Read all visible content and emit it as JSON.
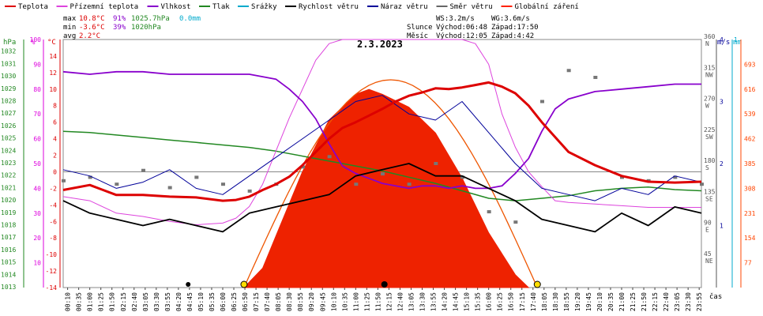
{
  "legend": [
    {
      "label": "Teplota",
      "color": "#dd0000"
    },
    {
      "label": "Přízemní teplota",
      "color": "#dd44dd"
    },
    {
      "label": "Vlhkost",
      "color": "#8800cc"
    },
    {
      "label": "Tlak",
      "color": "#228822"
    },
    {
      "label": "Srážky",
      "color": "#00aacc"
    },
    {
      "label": "Rychlost větru",
      "color": "#000000"
    },
    {
      "label": "Náraz větru",
      "color": "#000099"
    },
    {
      "label": "Směr větru",
      "color": "#666666"
    },
    {
      "label": "Globální záření",
      "color": "#ff2200"
    }
  ],
  "stats": {
    "max": {
      "label": "max",
      "temp": "10.8°C",
      "hum": "91%",
      "press": "1025.7hPa",
      "rain": "0.0mm"
    },
    "min": {
      "label": "min",
      "temp": "-3.6°C",
      "hum": "39%",
      "press": "1020hPa"
    },
    "avg": {
      "label": "avg",
      "temp": "2.2°C"
    }
  },
  "sun": {
    "ws": "WS:3.2m/s",
    "wg": "WG:3.6m/s",
    "sun_label": "Slunce",
    "sunrise": "Východ:06:48",
    "sunset": "Západ:17:50",
    "moon_label": "Měsíc",
    "moonrise": "Východ:12:05",
    "moonset": "Západ:4:42"
  },
  "chart_data": {
    "type": "line",
    "title": "2.3.2023",
    "x_label": "čas",
    "x_range_hours": [
      0,
      24
    ],
    "x_ticks": [
      "00:10",
      "00:35",
      "01:00",
      "01:25",
      "01:50",
      "02:15",
      "02:40",
      "03:05",
      "03:30",
      "03:55",
      "04:20",
      "04:45",
      "05:10",
      "05:35",
      "06:00",
      "06:25",
      "06:50",
      "07:15",
      "07:40",
      "08:05",
      "08:30",
      "08:55",
      "09:20",
      "09:45",
      "10:10",
      "10:35",
      "11:00",
      "11:25",
      "11:50",
      "12:15",
      "12:40",
      "13:05",
      "13:30",
      "13:55",
      "14:20",
      "14:45",
      "15:10",
      "15:35",
      "16:00",
      "16:25",
      "16:50",
      "17:15",
      "17:40",
      "18:05",
      "18:30",
      "18:55",
      "19:20",
      "19:45",
      "20:10",
      "20:35",
      "21:00",
      "21:25",
      "21:50",
      "22:15",
      "22:40",
      "23:05",
      "23:30",
      "23:55"
    ],
    "axes": {
      "pressure": {
        "unit": "hPa",
        "range": [
          1013,
          1033
        ],
        "ticks": [
          1013,
          1014,
          1015,
          1016,
          1017,
          1018,
          1019,
          1020,
          1021,
          1022,
          1023,
          1024,
          1025,
          1026,
          1027,
          1028,
          1029,
          1030,
          1031,
          1032
        ]
      },
      "humidity": {
        "unit": "%",
        "range": [
          0,
          100
        ],
        "ticks": [
          10,
          20,
          30,
          40,
          50,
          60,
          70,
          80,
          90,
          100
        ]
      },
      "temperature": {
        "unit": "°C",
        "range": [
          -14,
          16
        ],
        "ticks": [
          -14,
          -12,
          -10,
          -8,
          -6,
          -4,
          -2,
          0,
          2,
          4,
          6,
          8,
          10,
          12,
          14
        ]
      },
      "wind_direction": {
        "unit": "°",
        "range": [
          0,
          360
        ],
        "ticks": [
          "45 NE",
          "90 E",
          "135 SE",
          "180 S",
          "225 SW",
          "270 W",
          "315 NW",
          "360 N"
        ]
      },
      "wind_speed": {
        "unit": "m/s",
        "range": [
          0,
          4
        ],
        "ticks": [
          1,
          2,
          3,
          4
        ]
      },
      "rain": {
        "unit": "mm",
        "range": [
          0,
          1
        ],
        "ticks": [
          1
        ]
      },
      "radiation": {
        "unit": "W/m²",
        "range": [
          0,
          770
        ],
        "ticks": [
          77,
          154,
          231,
          308,
          385,
          462,
          539,
          616,
          693
        ]
      }
    },
    "series": [
      {
        "name": "Teplota",
        "axis": "temperature",
        "x": [
          0,
          1,
          2,
          3,
          4,
          5,
          6,
          6.5,
          7,
          7.5,
          8,
          8.5,
          9,
          9.5,
          10,
          10.5,
          11,
          11.5,
          12,
          12.5,
          13,
          13.5,
          14,
          14.5,
          15,
          15.5,
          16,
          16.5,
          17,
          17.5,
          18,
          18.5,
          19,
          20,
          21,
          22,
          23,
          24
        ],
        "y": [
          -2.2,
          -1.6,
          -2.8,
          -2.8,
          -3,
          -3.1,
          -3.5,
          -3.4,
          -3,
          -2.2,
          -1.5,
          -0.6,
          0.8,
          2.4,
          4,
          5.3,
          6,
          6.8,
          7.6,
          8.5,
          9.2,
          9.6,
          10.1,
          10,
          10.2,
          10.5,
          10.8,
          10.3,
          9.5,
          8,
          6,
          4.2,
          2.4,
          0.8,
          -0.5,
          -1.2,
          -1.3,
          -1.2
        ]
      },
      {
        "name": "Přízemní teplota",
        "axis": "temperature",
        "x": [
          0,
          1,
          2,
          3,
          4,
          5,
          6,
          6.5,
          7,
          7.5,
          8,
          8.5,
          9,
          9.5,
          10,
          10.5,
          11,
          11.5,
          12,
          12.5,
          13,
          13.5,
          14,
          14.5,
          15,
          15.5,
          16,
          16.5,
          17,
          17.5,
          18,
          18.5,
          19,
          20,
          21,
          22,
          23,
          24
        ],
        "y": [
          -3,
          -3.5,
          -5,
          -5.4,
          -6,
          -6.4,
          -6.2,
          -5.6,
          -4.2,
          -1.5,
          2.5,
          6.5,
          10,
          13.5,
          15.5,
          16,
          16,
          16,
          16,
          16,
          16,
          16,
          16,
          16,
          16,
          15.5,
          13,
          7,
          3,
          0,
          -1.8,
          -3.5,
          -3.7,
          -3.9,
          -4.1,
          -4.3,
          -4.3,
          -4.3
        ]
      },
      {
        "name": "Vlhkost",
        "axis": "humidity",
        "x": [
          0,
          1,
          2,
          3,
          4,
          5,
          6,
          6.5,
          7,
          7.5,
          8,
          8.5,
          9,
          9.5,
          10,
          10.5,
          11,
          11.5,
          12,
          12.5,
          13,
          13.5,
          14,
          14.5,
          15,
          15.5,
          16,
          16.5,
          17,
          17.5,
          18,
          18.5,
          19,
          20,
          21,
          22,
          23,
          24
        ],
        "y": [
          87,
          86,
          87,
          87,
          86,
          86,
          86,
          86,
          86,
          85,
          84,
          80,
          75,
          68,
          58,
          49,
          46,
          44,
          42,
          41,
          40,
          41,
          41,
          40,
          41,
          40,
          40,
          41,
          46,
          52,
          63,
          72,
          76,
          79,
          80,
          81,
          82,
          82
        ]
      },
      {
        "name": "Tlak",
        "axis": "pressure",
        "x": [
          0,
          1,
          2,
          3,
          4,
          5,
          6,
          7,
          8,
          9,
          10,
          11,
          12,
          13,
          14,
          15,
          16,
          17,
          18,
          19,
          20,
          21,
          22,
          23,
          24
        ],
        "y": [
          1025.6,
          1025.5,
          1025.3,
          1025.1,
          1024.9,
          1024.7,
          1024.5,
          1024.3,
          1024,
          1023.6,
          1023.2,
          1022.8,
          1022.4,
          1021.9,
          1021.4,
          1020.8,
          1020.2,
          1020,
          1020.2,
          1020.4,
          1020.8,
          1021,
          1021.1,
          1020.9,
          1020.8
        ]
      },
      {
        "name": "Rychlost větru",
        "axis": "wind_speed",
        "x": [
          0,
          1,
          2,
          3,
          4,
          5,
          6,
          7,
          8,
          9,
          10,
          11,
          12,
          13,
          14,
          15,
          16,
          17,
          18,
          19,
          20,
          21,
          22,
          23,
          24
        ],
        "y": [
          1.4,
          1.2,
          1.1,
          1,
          1.1,
          1,
          0.9,
          1.2,
          1.3,
          1.4,
          1.5,
          1.8,
          1.9,
          2,
          1.8,
          1.8,
          1.6,
          1.4,
          1.1,
          1,
          0.9,
          1.2,
          1,
          1.3,
          1.2
        ]
      },
      {
        "name": "Náraz větru",
        "axis": "wind_speed",
        "x": [
          0,
          1,
          2,
          3,
          4,
          5,
          6,
          7,
          8,
          9,
          10,
          11,
          12,
          13,
          14,
          15,
          16,
          17,
          18,
          19,
          20,
          21,
          22,
          23,
          24
        ],
        "y": [
          1.9,
          1.8,
          1.6,
          1.7,
          1.9,
          1.6,
          1.5,
          1.8,
          2.1,
          2.4,
          2.7,
          3.0,
          3.1,
          2.8,
          2.7,
          3.0,
          2.5,
          2,
          1.6,
          1.5,
          1.4,
          1.6,
          1.5,
          1.8,
          1.7
        ]
      },
      {
        "name": "Globální záření",
        "axis": "radiation",
        "x": [
          6.8,
          7.5,
          8,
          9,
          10,
          11,
          11.5,
          12,
          13,
          14,
          15,
          16,
          17,
          17.5
        ],
        "y": [
          0,
          60,
          160,
          360,
          520,
          600,
          615,
          600,
          560,
          480,
          340,
          170,
          40,
          0
        ]
      },
      {
        "name": "Směr větru",
        "axis": "wind_direction",
        "x": [
          0,
          1,
          2,
          3,
          4,
          5,
          6,
          7,
          8,
          9,
          10,
          11,
          12,
          13,
          14,
          15,
          16,
          17,
          18,
          19,
          20,
          21,
          22,
          23,
          24
        ],
        "y": [
          155,
          160,
          150,
          170,
          145,
          160,
          150,
          140,
          150,
          175,
          190,
          150,
          165,
          150,
          180,
          160,
          110,
          95,
          270,
          315,
          305,
          160,
          155,
          160,
          150
        ]
      }
    ],
    "markers": {
      "sunrise_hour": 6.8,
      "sunset_hour": 17.83,
      "moonrise_hour": 12.08,
      "moonset_hour": 4.7
    }
  }
}
